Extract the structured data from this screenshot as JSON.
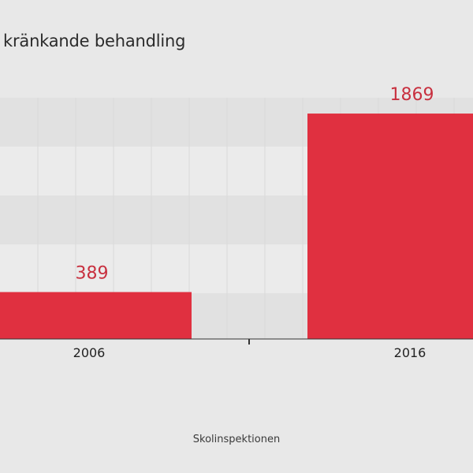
{
  "chart_data": {
    "type": "bar",
    "title": "kränkande behandling",
    "categories": [
      "2006",
      "2016"
    ],
    "values": [
      389,
      1869
    ],
    "ylim": [
      0,
      2500
    ],
    "grid": true,
    "source": "Skolinspektionen",
    "colors": {
      "bar": "#e03040",
      "value_label": "#c8303f",
      "band_light": "#ebebeb",
      "band_dark": "#e1e1e1",
      "axis": "#333333",
      "background": "#e8e8e8"
    }
  }
}
